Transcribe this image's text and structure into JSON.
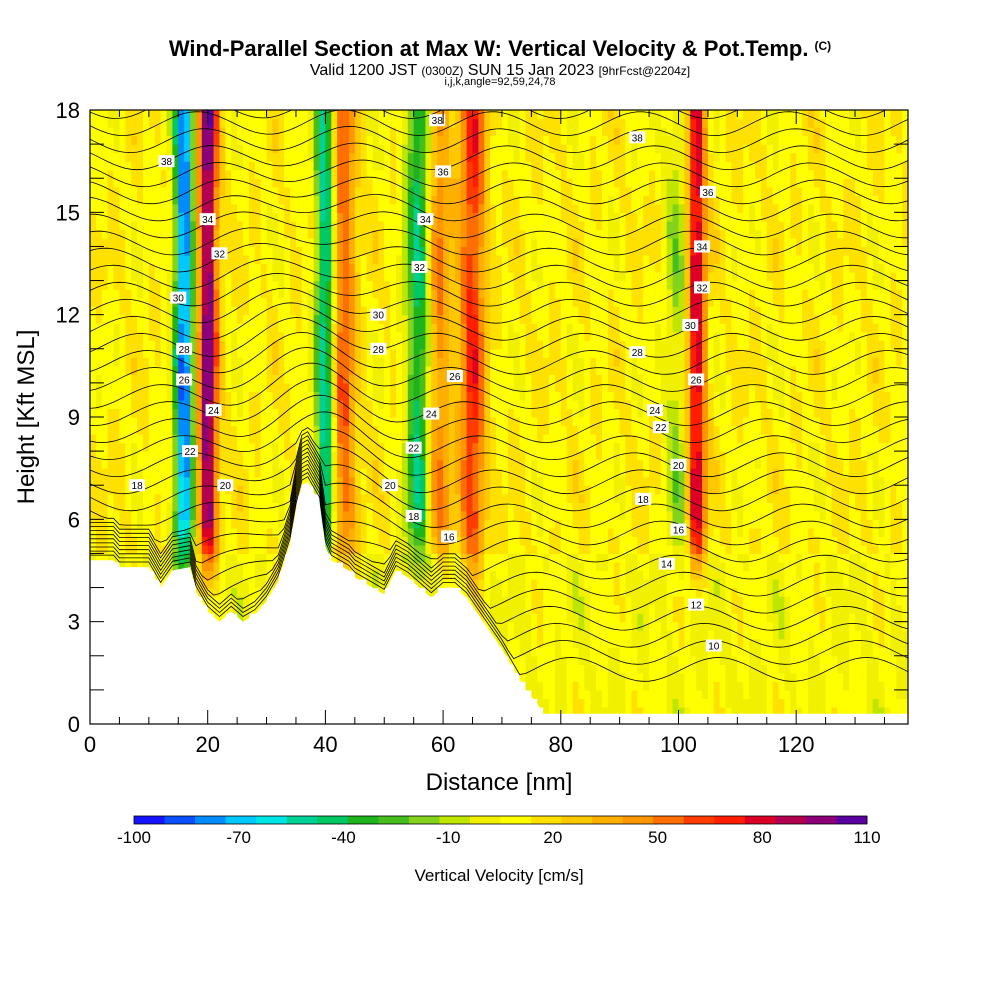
{
  "header": {
    "title": "Wind-Parallel Section at Max W: Vertical Velocity & Pot.Temp.",
    "title_mark": "(C)",
    "sub_valid": "Valid 1200 JST",
    "sub_utc": "(0300Z)",
    "sub_date": "SUN 15 Jan 2023",
    "sub_fcst": "[9hrFcst@2204z]",
    "sub_indices": "i,j,k,angle=92,59,24,78"
  },
  "colorbar": {
    "label": "Vertical Velocity [cm/s]",
    "ticks": [
      "-100",
      "-70",
      "-40",
      "-10",
      "20",
      "50",
      "80",
      "110"
    ],
    "colors": [
      "#1414ff",
      "#0a50ff",
      "#008cff",
      "#00c8ff",
      "#00e6e6",
      "#00d296",
      "#00c864",
      "#1eb41e",
      "#46be1e",
      "#82d21e",
      "#bee600",
      "#f0f000",
      "#ffff00",
      "#ffe100",
      "#ffc800",
      "#ffaf00",
      "#ff9600",
      "#ff6e00",
      "#ff3c00",
      "#ff1e00",
      "#dc0028",
      "#b40050",
      "#8c0078",
      "#5a00a0"
    ]
  },
  "chart_data": {
    "type": "heatmap",
    "title": "Wind-Parallel Section at Max W: Vertical Velocity & Pot.Temp.",
    "xlabel": "Distance [nm]",
    "ylabel": "Height [Kft MSL]",
    "xlim": [
      0,
      139
    ],
    "ylim": [
      0,
      18
    ],
    "xticks": [
      0,
      20,
      40,
      60,
      80,
      100,
      120
    ],
    "yticks": [
      0,
      3,
      6,
      9,
      12,
      15,
      18
    ],
    "colorbar_range": [
      -100,
      110
    ],
    "terrain": {
      "x": [
        0,
        4,
        5,
        10,
        12,
        14,
        17,
        18,
        20,
        22,
        24,
        26,
        28,
        30,
        32,
        34,
        35,
        36,
        37,
        38,
        39,
        40,
        41,
        42,
        43,
        44,
        45,
        46,
        48,
        50,
        52,
        54,
        56,
        58,
        60,
        62,
        64,
        66,
        68,
        70,
        72,
        74,
        76,
        77,
        78,
        80,
        84,
        90,
        139
      ],
      "height": [
        4.8,
        4.8,
        4.6,
        4.6,
        4.0,
        4.5,
        4.6,
        3.9,
        3.3,
        3.0,
        3.3,
        3.0,
        3.2,
        3.6,
        4.2,
        5.3,
        6.3,
        7.0,
        7.1,
        6.8,
        6.5,
        5.2,
        4.8,
        4.7,
        4.6,
        4.5,
        4.3,
        4.2,
        4.0,
        3.8,
        4.5,
        4.3,
        4.0,
        3.7,
        4.0,
        4.0,
        3.7,
        3.2,
        2.7,
        2.2,
        1.6,
        1.0,
        0.6,
        0.3,
        0.3,
        0.3,
        0.3,
        0.3,
        0.3
      ]
    },
    "updrafts": [
      {
        "x": 20,
        "w": 90
      },
      {
        "x": 43,
        "w": 45
      },
      {
        "x": 59,
        "w": 40
      },
      {
        "x": 65,
        "w": 55
      },
      {
        "x": 103,
        "w": 75
      }
    ],
    "downdrafts": [
      {
        "x": 16,
        "w": -95
      },
      {
        "x": 40,
        "w": -70
      },
      {
        "x": 56,
        "w": -60
      },
      {
        "x": 100,
        "w": -25
      }
    ],
    "theta_labels": [
      {
        "x": 13,
        "y": 16.5,
        "value": "38"
      },
      {
        "x": 20,
        "y": 14.8,
        "value": "34"
      },
      {
        "x": 22,
        "y": 13.8,
        "value": "32"
      },
      {
        "x": 15,
        "y": 12.5,
        "value": "30"
      },
      {
        "x": 16,
        "y": 11.0,
        "value": "28"
      },
      {
        "x": 16,
        "y": 10.1,
        "value": "26"
      },
      {
        "x": 21,
        "y": 9.2,
        "value": "24"
      },
      {
        "x": 17,
        "y": 8.0,
        "value": "22"
      },
      {
        "x": 23,
        "y": 7.0,
        "value": "20"
      },
      {
        "x": 8,
        "y": 7.0,
        "value": "18"
      },
      {
        "x": 59,
        "y": 17.7,
        "value": "38"
      },
      {
        "x": 60,
        "y": 16.2,
        "value": "36"
      },
      {
        "x": 57,
        "y": 14.8,
        "value": "34"
      },
      {
        "x": 56,
        "y": 13.4,
        "value": "32"
      },
      {
        "x": 49,
        "y": 12.0,
        "value": "30"
      },
      {
        "x": 49,
        "y": 11.0,
        "value": "28"
      },
      {
        "x": 62,
        "y": 10.2,
        "value": "26"
      },
      {
        "x": 58,
        "y": 9.1,
        "value": "24"
      },
      {
        "x": 55,
        "y": 8.1,
        "value": "22"
      },
      {
        "x": 51,
        "y": 7.0,
        "value": "20"
      },
      {
        "x": 55,
        "y": 6.1,
        "value": "18"
      },
      {
        "x": 61,
        "y": 5.5,
        "value": "16"
      },
      {
        "x": 93,
        "y": 17.2,
        "value": "38"
      },
      {
        "x": 105,
        "y": 15.6,
        "value": "36"
      },
      {
        "x": 104,
        "y": 14.0,
        "value": "34"
      },
      {
        "x": 104,
        "y": 12.8,
        "value": "32"
      },
      {
        "x": 102,
        "y": 11.7,
        "value": "30"
      },
      {
        "x": 93,
        "y": 10.9,
        "value": "28"
      },
      {
        "x": 103,
        "y": 10.1,
        "value": "26"
      },
      {
        "x": 96,
        "y": 9.2,
        "value": "24"
      },
      {
        "x": 97,
        "y": 8.7,
        "value": "22"
      },
      {
        "x": 100,
        "y": 7.6,
        "value": "20"
      },
      {
        "x": 94,
        "y": 6.6,
        "value": "18"
      },
      {
        "x": 100,
        "y": 5.7,
        "value": "16"
      },
      {
        "x": 98,
        "y": 4.7,
        "value": "14"
      },
      {
        "x": 103,
        "y": 3.5,
        "value": "12"
      },
      {
        "x": 106,
        "y": 2.3,
        "value": "10"
      }
    ]
  }
}
